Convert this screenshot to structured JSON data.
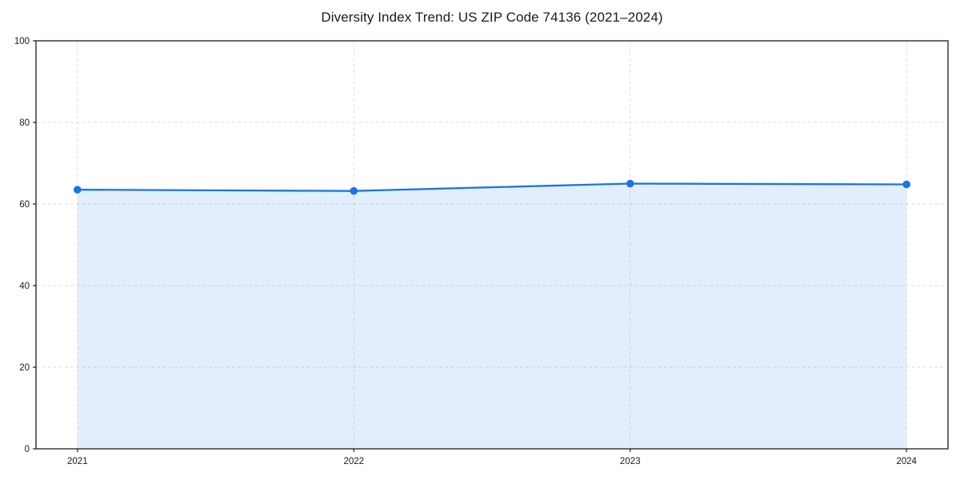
{
  "chart_data": {
    "type": "area",
    "title": "Diversity Index Trend: US ZIP Code 74136 (2021–2024)",
    "series_name": "Diversity Index",
    "categories": [
      "2021",
      "2022",
      "2023",
      "2024"
    ],
    "x": [
      2021,
      2022,
      2023,
      2024
    ],
    "values": [
      63.5,
      63.2,
      65.0,
      64.8
    ],
    "xlim": [
      2020.85,
      2024.15
    ],
    "ylim": [
      0,
      100
    ],
    "yticks": [
      0,
      20,
      40,
      60,
      80,
      100
    ],
    "grid": true,
    "legend_position": "none",
    "xlabel": "",
    "ylabel": "",
    "colors": {
      "line": "#1a73e8",
      "marker": "#1a73e8",
      "fill": "rgba(26, 115, 232, 0.12)",
      "grid": "#dedede",
      "spine": "#1b1b1b",
      "tick": "#1b1b1b",
      "text": "#1a1a1a",
      "background": "#ffffff"
    }
  }
}
